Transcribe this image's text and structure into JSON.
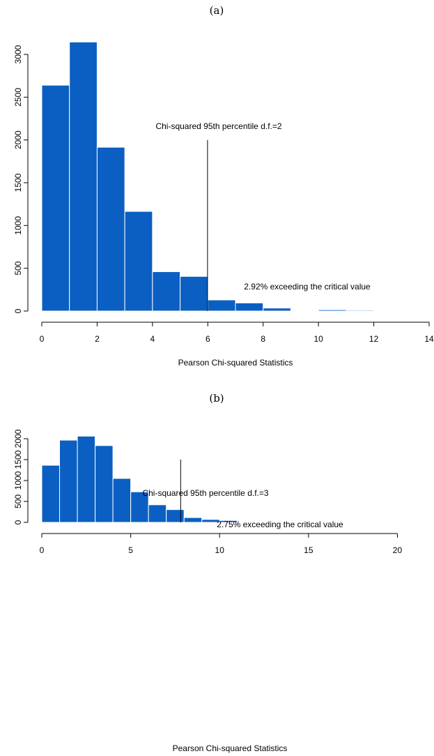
{
  "colors": {
    "bar_fill": "#0b5fc2",
    "bar_outline": "#ffffff",
    "line": "#000000",
    "background": "#ffffff"
  },
  "chart_data": [
    {
      "type": "bar",
      "panel_label": "(a)",
      "title": "",
      "xlabel": "Pearson Chi-squared Statistics",
      "ylabel": "",
      "xlim": [
        0,
        14
      ],
      "ylim": [
        0,
        3000
      ],
      "x_ticks": [
        0,
        2,
        4,
        6,
        8,
        10,
        12,
        14
      ],
      "y_ticks": [
        0,
        500,
        1000,
        1500,
        2000,
        2500,
        3000
      ],
      "bin_edges": [
        0,
        1,
        2,
        3,
        4,
        5,
        6,
        7,
        8,
        9,
        10,
        11,
        12,
        13,
        14
      ],
      "values": [
        2640,
        3145,
        1915,
        1165,
        460,
        405,
        130,
        95,
        35,
        3,
        15,
        10,
        8,
        3
      ],
      "critical_value": 5.99,
      "critical_line_top": 2000,
      "annotations": {
        "critical_label": "Chi-squared 95th percentile d.f.=2",
        "exceed_label": "2.92% exceeding the critical value"
      },
      "grid": false
    },
    {
      "type": "bar",
      "panel_label": "(b)",
      "title": "",
      "xlabel": "Pearson Chi-squared Statistics",
      "ylabel": "",
      "xlim": [
        0,
        21
      ],
      "ylim": [
        0,
        2000
      ],
      "x_ticks": [
        0,
        5,
        10,
        15,
        20
      ],
      "y_ticks": [
        0,
        500,
        1000,
        1500,
        2000
      ],
      "bin_edges": [
        0,
        1,
        2,
        3,
        4,
        5,
        6,
        7,
        8,
        9,
        10,
        11,
        12,
        13,
        14,
        15,
        16,
        17,
        18,
        19,
        20,
        21
      ],
      "values": [
        1365,
        1965,
        2060,
        1835,
        1050,
        730,
        420,
        305,
        115,
        70,
        45,
        10,
        3,
        5,
        5,
        2,
        2,
        2,
        0,
        0,
        3
      ],
      "critical_value": 7.81,
      "critical_line_top": 1500,
      "annotations": {
        "critical_label": "Chi-squared 95th percentile d.f.=3",
        "exceed_label": "2.75% exceeding the critical value"
      },
      "grid": false
    }
  ]
}
